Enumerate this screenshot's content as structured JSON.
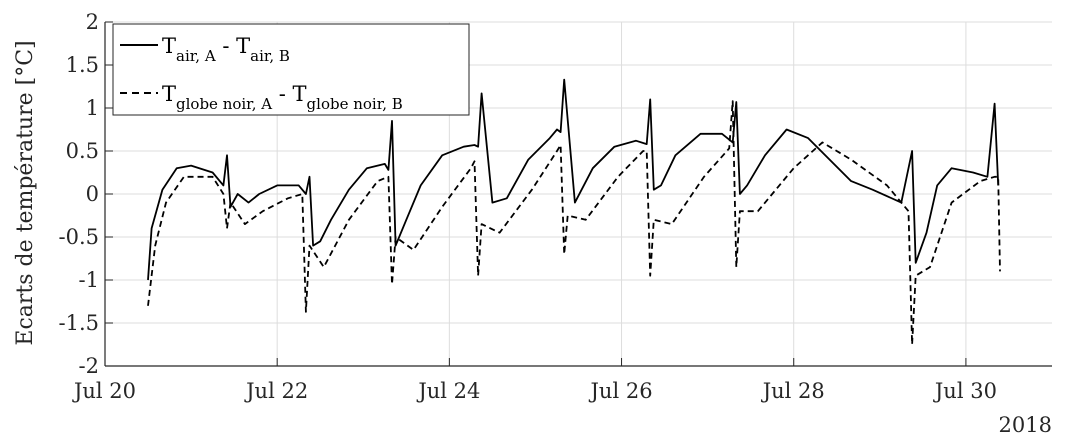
{
  "chart_data": {
    "type": "line",
    "xlabel": "",
    "ylabel": "Ecarts de température [°C]",
    "year_label": "2018",
    "x_tick_labels": [
      "Jul 20",
      "Jul 22",
      "Jul 24",
      "Jul 26",
      "Jul 28",
      "Jul 30"
    ],
    "y_tick_labels": [
      "2",
      "1.5",
      "1",
      "0.5",
      "0",
      "-0.5",
      "-1",
      "-1.5",
      "-2"
    ],
    "xlim": [
      "2018-07-20",
      "2018-07-31"
    ],
    "ylim": [
      -2,
      2
    ],
    "grid": true,
    "legend_position": "top-left",
    "colors": {
      "air": "#000000",
      "globe": "#000000",
      "grid": "#dddddd",
      "axis": "#262626"
    },
    "legend": [
      {
        "series": "air",
        "main1": "T",
        "sub1": "air, A",
        "sep": " - ",
        "main2": "T",
        "sub2": "air, B",
        "style": "solid"
      },
      {
        "series": "globe",
        "main1": "T",
        "sub1": "globe noir, A",
        "sep": " - ",
        "main2": "T",
        "sub2": "globe noir, B",
        "style": "dashed"
      }
    ],
    "series": [
      {
        "key": "air",
        "line_style": "solid",
        "x": [
          "2018-07-20 12:00",
          "2018-07-20 13:00",
          "2018-07-20 16:00",
          "2018-07-20 20:00",
          "2018-07-21 00:00",
          "2018-07-21 06:00",
          "2018-07-21 09:00",
          "2018-07-21 10:00",
          "2018-07-21 11:00",
          "2018-07-21 13:00",
          "2018-07-21 16:00",
          "2018-07-21 19:00",
          "2018-07-22 00:00",
          "2018-07-22 06:00",
          "2018-07-22 08:00",
          "2018-07-22 09:00",
          "2018-07-22 10:00",
          "2018-07-22 12:00",
          "2018-07-22 15:00",
          "2018-07-22 20:00",
          "2018-07-23 01:00",
          "2018-07-23 06:00",
          "2018-07-23 07:00",
          "2018-07-23 08:00",
          "2018-07-23 09:00",
          "2018-07-23 12:00",
          "2018-07-23 16:00",
          "2018-07-23 22:00",
          "2018-07-24 04:00",
          "2018-07-24 07:00",
          "2018-07-24 08:00",
          "2018-07-24 09:00",
          "2018-07-24 12:00",
          "2018-07-24 16:00",
          "2018-07-24 22:00",
          "2018-07-25 04:00",
          "2018-07-25 06:00",
          "2018-07-25 07:00",
          "2018-07-25 08:00",
          "2018-07-25 11:00",
          "2018-07-25 16:00",
          "2018-07-25 22:00",
          "2018-07-26 04:00",
          "2018-07-26 07:00",
          "2018-07-26 08:00",
          "2018-07-26 09:00",
          "2018-07-26 11:00",
          "2018-07-26 15:00",
          "2018-07-26 22:00",
          "2018-07-27 04:00",
          "2018-07-27 07:00",
          "2018-07-27 08:00",
          "2018-07-27 09:00",
          "2018-07-27 11:00",
          "2018-07-27 16:00",
          "2018-07-27 22:00",
          "2018-07-28 04:00",
          "2018-07-28 10:00",
          "2018-07-28 16:00",
          "2018-07-28 22:00",
          "2018-07-29 06:00",
          "2018-07-29 09:00",
          "2018-07-29 10:00",
          "2018-07-29 13:00",
          "2018-07-29 16:00",
          "2018-07-29 20:00",
          "2018-07-30 02:00",
          "2018-07-30 06:00",
          "2018-07-30 08:00",
          "2018-07-30 09:00"
        ],
        "y": [
          -1.0,
          -0.4,
          0.05,
          0.3,
          0.33,
          0.25,
          0.1,
          0.45,
          -0.15,
          0.0,
          -0.1,
          0.0,
          0.1,
          0.1,
          0.0,
          0.2,
          -0.6,
          -0.55,
          -0.3,
          0.05,
          0.3,
          0.35,
          0.28,
          0.85,
          -0.6,
          -0.3,
          0.1,
          0.45,
          0.55,
          0.57,
          0.55,
          1.17,
          -0.1,
          -0.05,
          0.4,
          0.65,
          0.75,
          0.72,
          1.33,
          -0.1,
          0.3,
          0.55,
          0.62,
          0.58,
          1.1,
          0.05,
          0.1,
          0.45,
          0.7,
          0.7,
          0.6,
          1.07,
          0.0,
          0.1,
          0.45,
          0.75,
          0.65,
          0.4,
          0.15,
          0.05,
          -0.1,
          0.5,
          -0.8,
          -0.45,
          0.1,
          0.3,
          0.25,
          0.2,
          1.05,
          0.1
        ]
      },
      {
        "key": "globe",
        "line_style": "dashed",
        "x": [
          "2018-07-20 12:00",
          "2018-07-20 14:00",
          "2018-07-20 17:00",
          "2018-07-20 22:00",
          "2018-07-21 06:00",
          "2018-07-21 09:00",
          "2018-07-21 10:00",
          "2018-07-21 11:00",
          "2018-07-21 15:00",
          "2018-07-21 20:00",
          "2018-07-22 03:00",
          "2018-07-22 07:00",
          "2018-07-22 08:00",
          "2018-07-22 09:00",
          "2018-07-22 13:00",
          "2018-07-22 20:00",
          "2018-07-23 04:00",
          "2018-07-23 07:00",
          "2018-07-23 08:00",
          "2018-07-23 09:00",
          "2018-07-23 14:00",
          "2018-07-23 22:00",
          "2018-07-24 06:00",
          "2018-07-24 07:00",
          "2018-07-24 08:00",
          "2018-07-24 09:00",
          "2018-07-24 14:00",
          "2018-07-24 23:00",
          "2018-07-25 06:00",
          "2018-07-25 07:00",
          "2018-07-25 08:00",
          "2018-07-25 09:00",
          "2018-07-25 14:00",
          "2018-07-25 23:00",
          "2018-07-26 06:00",
          "2018-07-26 07:00",
          "2018-07-26 08:00",
          "2018-07-26 09:00",
          "2018-07-26 14:00",
          "2018-07-26 23:00",
          "2018-07-27 06:00",
          "2018-07-27 07:00",
          "2018-07-27 08:00",
          "2018-07-27 09:00",
          "2018-07-27 14:00",
          "2018-07-28 00:00",
          "2018-07-28 08:00",
          "2018-07-28 16:00",
          "2018-07-29 02:00",
          "2018-07-29 08:00",
          "2018-07-29 09:00",
          "2018-07-29 10:00",
          "2018-07-29 14:00",
          "2018-07-29 20:00",
          "2018-07-30 04:00",
          "2018-07-30 08:00",
          "2018-07-30 09:00",
          "2018-07-30 09:30"
        ],
        "y": [
          -1.3,
          -0.6,
          -0.1,
          0.2,
          0.2,
          0.0,
          -0.4,
          -0.1,
          -0.35,
          -0.2,
          -0.05,
          0.0,
          -1.37,
          -0.6,
          -0.85,
          -0.3,
          0.15,
          0.2,
          -1.05,
          -0.5,
          -0.65,
          -0.15,
          0.3,
          0.38,
          -0.95,
          -0.35,
          -0.45,
          0.05,
          0.5,
          0.57,
          -0.7,
          -0.25,
          -0.3,
          0.2,
          0.5,
          0.5,
          -0.95,
          -0.3,
          -0.35,
          0.2,
          0.53,
          1.08,
          -0.85,
          -0.2,
          -0.2,
          0.3,
          0.6,
          0.4,
          0.1,
          -0.2,
          -1.75,
          -0.95,
          -0.85,
          -0.1,
          0.15,
          0.2,
          0.2,
          -0.9
        ]
      }
    ]
  }
}
